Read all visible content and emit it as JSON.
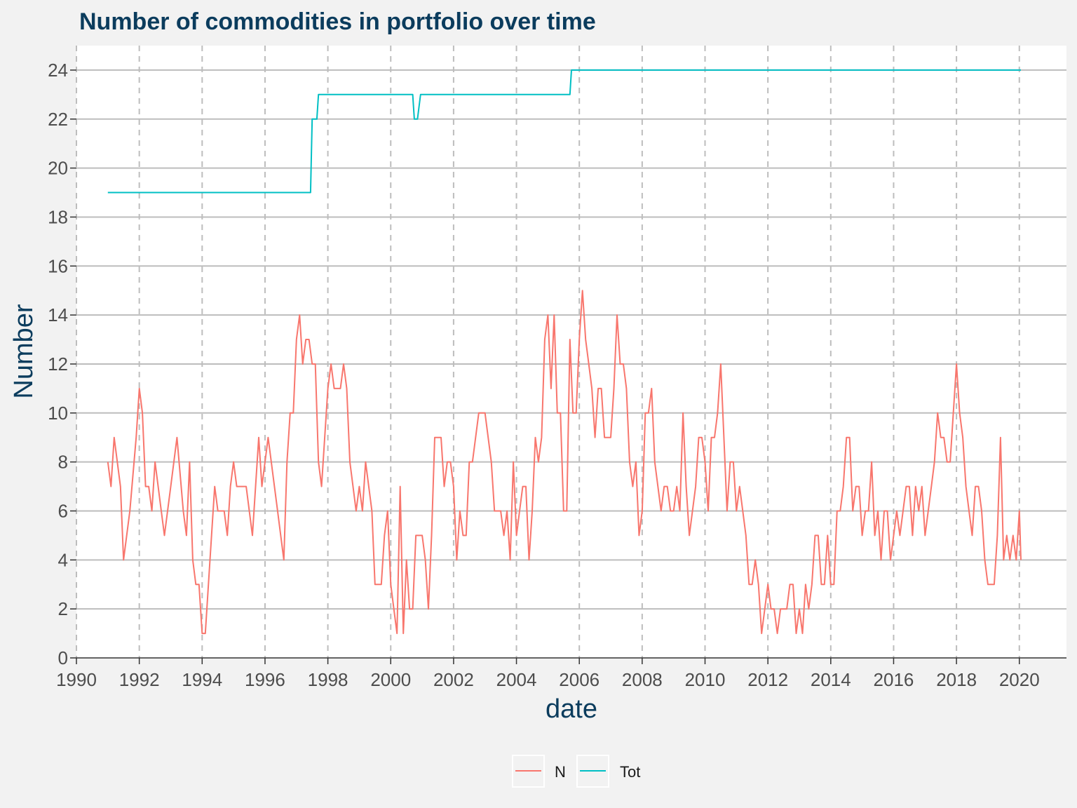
{
  "chart_data": {
    "type": "line",
    "title": "Number of commodities in portfolio over time",
    "xlabel": "date",
    "ylabel": "Number",
    "xlim": [
      1990,
      2021.5
    ],
    "ylim": [
      0,
      25
    ],
    "x_ticks": [
      "1990",
      "1992",
      "1994",
      "1996",
      "1998",
      "2000",
      "2002",
      "2004",
      "2006",
      "2008",
      "2010",
      "2012",
      "2014",
      "2016",
      "2018",
      "2020"
    ],
    "y_ticks": [
      "0",
      "2",
      "4",
      "6",
      "8",
      "10",
      "12",
      "14",
      "16",
      "18",
      "20",
      "22",
      "24"
    ],
    "grid": true,
    "legend_position": "bottom",
    "series": [
      {
        "name": "N",
        "color": "#f8766d",
        "points": [
          [
            1991.0,
            8
          ],
          [
            1991.1,
            7
          ],
          [
            1991.2,
            9
          ],
          [
            1991.4,
            7
          ],
          [
            1991.5,
            4
          ],
          [
            1991.7,
            6
          ],
          [
            1991.9,
            9
          ],
          [
            1992.0,
            11
          ],
          [
            1992.1,
            10
          ],
          [
            1992.2,
            7
          ],
          [
            1992.3,
            7
          ],
          [
            1992.4,
            6
          ],
          [
            1992.5,
            8
          ],
          [
            1992.7,
            6
          ],
          [
            1992.8,
            5
          ],
          [
            1993.0,
            7
          ],
          [
            1993.2,
            9
          ],
          [
            1993.4,
            6
          ],
          [
            1993.5,
            5
          ],
          [
            1993.6,
            8
          ],
          [
            1993.7,
            4
          ],
          [
            1993.8,
            3
          ],
          [
            1993.9,
            3
          ],
          [
            1994.0,
            1
          ],
          [
            1994.1,
            1
          ],
          [
            1994.3,
            5
          ],
          [
            1994.4,
            7
          ],
          [
            1994.5,
            6
          ],
          [
            1994.7,
            6
          ],
          [
            1994.8,
            5
          ],
          [
            1994.9,
            7
          ],
          [
            1995.0,
            8
          ],
          [
            1995.1,
            7
          ],
          [
            1995.4,
            7
          ],
          [
            1995.6,
            5
          ],
          [
            1995.7,
            7
          ],
          [
            1995.8,
            9
          ],
          [
            1995.9,
            7
          ],
          [
            1996.1,
            9
          ],
          [
            1996.3,
            7
          ],
          [
            1996.4,
            6
          ],
          [
            1996.6,
            4
          ],
          [
            1996.7,
            8
          ],
          [
            1996.8,
            10
          ],
          [
            1996.9,
            10
          ],
          [
            1997.0,
            13
          ],
          [
            1997.1,
            14
          ],
          [
            1997.2,
            12
          ],
          [
            1997.3,
            13
          ],
          [
            1997.4,
            13
          ],
          [
            1997.5,
            12
          ],
          [
            1997.6,
            12
          ],
          [
            1997.7,
            8
          ],
          [
            1997.8,
            7
          ],
          [
            1997.9,
            9
          ],
          [
            1998.0,
            11
          ],
          [
            1998.1,
            12
          ],
          [
            1998.2,
            11
          ],
          [
            1998.4,
            11
          ],
          [
            1998.5,
            12
          ],
          [
            1998.6,
            11
          ],
          [
            1998.7,
            8
          ],
          [
            1998.9,
            6
          ],
          [
            1999.0,
            7
          ],
          [
            1999.1,
            6
          ],
          [
            1999.2,
            8
          ],
          [
            1999.3,
            7
          ],
          [
            1999.4,
            6
          ],
          [
            1999.5,
            3
          ],
          [
            1999.7,
            3
          ],
          [
            1999.8,
            5
          ],
          [
            1999.9,
            6
          ],
          [
            2000.0,
            3
          ],
          [
            2000.1,
            2
          ],
          [
            2000.2,
            1
          ],
          [
            2000.3,
            7
          ],
          [
            2000.4,
            1
          ],
          [
            2000.5,
            4
          ],
          [
            2000.6,
            2
          ],
          [
            2000.7,
            2
          ],
          [
            2000.8,
            5
          ],
          [
            2000.9,
            5
          ],
          [
            2001.0,
            5
          ],
          [
            2001.1,
            4
          ],
          [
            2001.2,
            2
          ],
          [
            2001.3,
            5
          ],
          [
            2001.4,
            9
          ],
          [
            2001.5,
            9
          ],
          [
            2001.6,
            9
          ],
          [
            2001.7,
            7
          ],
          [
            2001.8,
            8
          ],
          [
            2001.9,
            8
          ],
          [
            2002.0,
            7
          ],
          [
            2002.1,
            4
          ],
          [
            2002.2,
            6
          ],
          [
            2002.3,
            5
          ],
          [
            2002.4,
            5
          ],
          [
            2002.5,
            8
          ],
          [
            2002.6,
            8
          ],
          [
            2002.7,
            9
          ],
          [
            2002.8,
            10
          ],
          [
            2002.9,
            10
          ],
          [
            2003.0,
            10
          ],
          [
            2003.2,
            8
          ],
          [
            2003.3,
            6
          ],
          [
            2003.5,
            6
          ],
          [
            2003.6,
            5
          ],
          [
            2003.7,
            6
          ],
          [
            2003.8,
            4
          ],
          [
            2003.9,
            8
          ],
          [
            2004.0,
            5
          ],
          [
            2004.1,
            6
          ],
          [
            2004.2,
            7
          ],
          [
            2004.3,
            7
          ],
          [
            2004.4,
            4
          ],
          [
            2004.5,
            6
          ],
          [
            2004.6,
            9
          ],
          [
            2004.7,
            8
          ],
          [
            2004.8,
            9
          ],
          [
            2004.9,
            13
          ],
          [
            2005.0,
            14
          ],
          [
            2005.1,
            11
          ],
          [
            2005.2,
            14
          ],
          [
            2005.3,
            10
          ],
          [
            2005.4,
            10
          ],
          [
            2005.5,
            6
          ],
          [
            2005.6,
            6
          ],
          [
            2005.7,
            13
          ],
          [
            2005.8,
            10
          ],
          [
            2005.9,
            10
          ],
          [
            2006.0,
            13
          ],
          [
            2006.1,
            15
          ],
          [
            2006.2,
            13
          ],
          [
            2006.3,
            12
          ],
          [
            2006.4,
            11
          ],
          [
            2006.5,
            9
          ],
          [
            2006.6,
            11
          ],
          [
            2006.7,
            11
          ],
          [
            2006.8,
            9
          ],
          [
            2006.9,
            9
          ],
          [
            2007.0,
            9
          ],
          [
            2007.1,
            11
          ],
          [
            2007.2,
            14
          ],
          [
            2007.3,
            12
          ],
          [
            2007.4,
            12
          ],
          [
            2007.5,
            11
          ],
          [
            2007.6,
            8
          ],
          [
            2007.7,
            7
          ],
          [
            2007.8,
            8
          ],
          [
            2007.9,
            5
          ],
          [
            2008.0,
            6
          ],
          [
            2008.1,
            10
          ],
          [
            2008.2,
            10
          ],
          [
            2008.3,
            11
          ],
          [
            2008.4,
            8
          ],
          [
            2008.5,
            7
          ],
          [
            2008.6,
            6
          ],
          [
            2008.7,
            7
          ],
          [
            2008.8,
            7
          ],
          [
            2008.9,
            6
          ],
          [
            2009.0,
            6
          ],
          [
            2009.1,
            7
          ],
          [
            2009.2,
            6
          ],
          [
            2009.3,
            10
          ],
          [
            2009.4,
            7
          ],
          [
            2009.5,
            5
          ],
          [
            2009.6,
            6
          ],
          [
            2009.7,
            7
          ],
          [
            2009.8,
            9
          ],
          [
            2009.9,
            9
          ],
          [
            2010.0,
            8
          ],
          [
            2010.1,
            6
          ],
          [
            2010.2,
            9
          ],
          [
            2010.3,
            9
          ],
          [
            2010.4,
            10
          ],
          [
            2010.5,
            12
          ],
          [
            2010.6,
            9
          ],
          [
            2010.7,
            6
          ],
          [
            2010.8,
            8
          ],
          [
            2010.9,
            8
          ],
          [
            2011.0,
            6
          ],
          [
            2011.1,
            7
          ],
          [
            2011.2,
            6
          ],
          [
            2011.3,
            5
          ],
          [
            2011.4,
            3
          ],
          [
            2011.5,
            3
          ],
          [
            2011.6,
            4
          ],
          [
            2011.7,
            3
          ],
          [
            2011.8,
            1
          ],
          [
            2011.9,
            2
          ],
          [
            2012.0,
            3
          ],
          [
            2012.1,
            2
          ],
          [
            2012.2,
            2
          ],
          [
            2012.3,
            1
          ],
          [
            2012.4,
            2
          ],
          [
            2012.5,
            2
          ],
          [
            2012.6,
            2
          ],
          [
            2012.7,
            3
          ],
          [
            2012.8,
            3
          ],
          [
            2012.9,
            1
          ],
          [
            2013.0,
            2
          ],
          [
            2013.1,
            1
          ],
          [
            2013.2,
            3
          ],
          [
            2013.3,
            2
          ],
          [
            2013.4,
            3
          ],
          [
            2013.5,
            5
          ],
          [
            2013.6,
            5
          ],
          [
            2013.7,
            3
          ],
          [
            2013.8,
            3
          ],
          [
            2013.9,
            5
          ],
          [
            2014.0,
            3
          ],
          [
            2014.1,
            3
          ],
          [
            2014.2,
            6
          ],
          [
            2014.3,
            6
          ],
          [
            2014.4,
            7
          ],
          [
            2014.5,
            9
          ],
          [
            2014.6,
            9
          ],
          [
            2014.7,
            6
          ],
          [
            2014.8,
            7
          ],
          [
            2014.9,
            7
          ],
          [
            2015.0,
            5
          ],
          [
            2015.1,
            6
          ],
          [
            2015.2,
            6
          ],
          [
            2015.3,
            8
          ],
          [
            2015.4,
            5
          ],
          [
            2015.5,
            6
          ],
          [
            2015.6,
            4
          ],
          [
            2015.7,
            6
          ],
          [
            2015.8,
            6
          ],
          [
            2015.9,
            4
          ],
          [
            2016.0,
            5
          ],
          [
            2016.1,
            6
          ],
          [
            2016.2,
            5
          ],
          [
            2016.3,
            6
          ],
          [
            2016.4,
            7
          ],
          [
            2016.5,
            7
          ],
          [
            2016.6,
            5
          ],
          [
            2016.7,
            7
          ],
          [
            2016.8,
            6
          ],
          [
            2016.9,
            7
          ],
          [
            2017.0,
            5
          ],
          [
            2017.1,
            6
          ],
          [
            2017.2,
            7
          ],
          [
            2017.3,
            8
          ],
          [
            2017.4,
            10
          ],
          [
            2017.5,
            9
          ],
          [
            2017.6,
            9
          ],
          [
            2017.7,
            8
          ],
          [
            2017.8,
            8
          ],
          [
            2017.9,
            10
          ],
          [
            2018.0,
            12
          ],
          [
            2018.1,
            10
          ],
          [
            2018.2,
            9
          ],
          [
            2018.3,
            7
          ],
          [
            2018.4,
            6
          ],
          [
            2018.5,
            5
          ],
          [
            2018.6,
            7
          ],
          [
            2018.7,
            7
          ],
          [
            2018.8,
            6
          ],
          [
            2018.9,
            4
          ],
          [
            2019.0,
            3
          ],
          [
            2019.1,
            3
          ],
          [
            2019.2,
            3
          ],
          [
            2019.3,
            5
          ],
          [
            2019.4,
            9
          ],
          [
            2019.5,
            4
          ],
          [
            2019.6,
            5
          ],
          [
            2019.7,
            4
          ],
          [
            2019.8,
            5
          ],
          [
            2019.9,
            4
          ],
          [
            2020.0,
            6
          ],
          [
            2020.05,
            4
          ]
        ]
      },
      {
        "name": "Tot",
        "color": "#00bfc4",
        "points": [
          [
            1991.0,
            19
          ],
          [
            1997.45,
            19
          ],
          [
            1997.5,
            22
          ],
          [
            1997.65,
            22
          ],
          [
            1997.7,
            23
          ],
          [
            2000.7,
            23
          ],
          [
            2000.75,
            22
          ],
          [
            2000.85,
            22
          ],
          [
            2000.95,
            23
          ],
          [
            2005.7,
            23
          ],
          [
            2005.75,
            24
          ],
          [
            2020.05,
            24
          ]
        ]
      }
    ]
  }
}
